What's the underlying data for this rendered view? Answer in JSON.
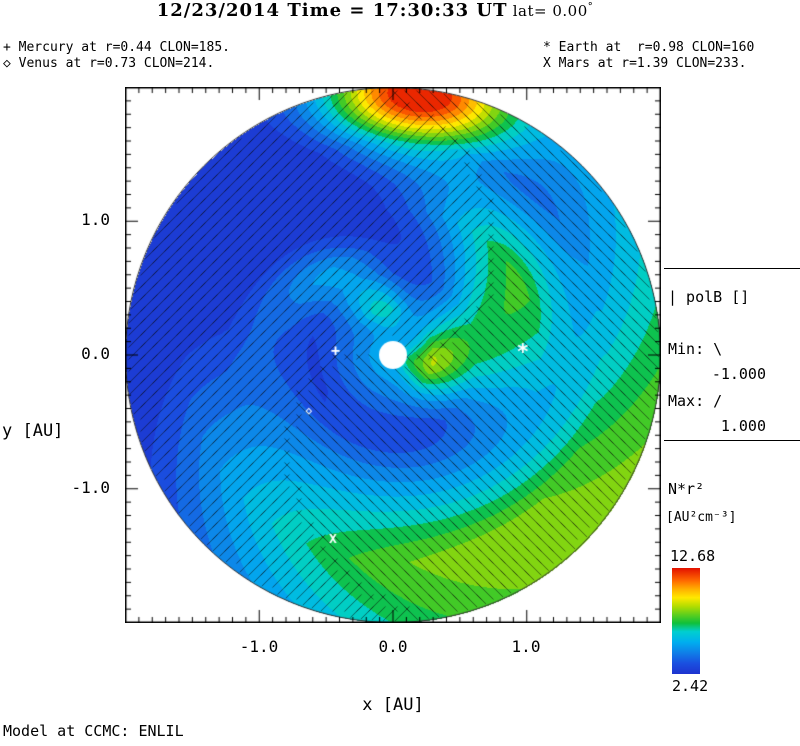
{
  "title": {
    "main": "12/23/2014 Time = 17:30:33 UT",
    "lat": " lat= 0.00",
    "degree": "°"
  },
  "annotations": {
    "mercury": "+ Mercury at r=0.44 CLON=185.",
    "venus": "◇ Venus at r=0.73 CLON=214.",
    "earth": "* Earth at  r=0.98 CLON=160",
    "mars": "X Mars at r=1.39 CLON=233."
  },
  "axes": {
    "x_label": "x [AU]",
    "y_label": "y [AU]",
    "x_ticks": {
      "m1": "-1.0",
      "z": "0.0",
      "p1": "1.0"
    },
    "y_ticks": {
      "p1": "1.0",
      "z": "0.0",
      "m1": "-1.0"
    }
  },
  "polarity_legend": {
    "title": "| polB []",
    "min_line": "Min: \\",
    "min_value": "-1.000",
    "max_line": "Max: /",
    "max_value": "1.000"
  },
  "colorbar": {
    "quantity": "N*r²",
    "units": "[AU²cm⁻³]",
    "max": "12.68",
    "min": "2.42"
  },
  "footer": {
    "model": "Model at CCMC: ENLIL"
  },
  "chart_data": {
    "type": "heatmap",
    "projection": "polar-disk-ecliptic-cut",
    "title": "12/23/2014 Time = 17:30:33 UT lat= 0.00°",
    "xlabel": "x [AU]",
    "ylabel": "y [AU]",
    "xlim": [
      -2.0,
      2.0
    ],
    "ylim": [
      -2.0,
      2.0
    ],
    "x_ticks": [
      -1.0,
      0.0,
      1.0
    ],
    "y_ticks": [
      -1.0,
      0.0,
      1.0
    ],
    "quantity": "N*r² [AU²cm⁻³]",
    "scale_min": 2.42,
    "scale_max": 12.68,
    "contour_bands": 16,
    "polarity": {
      "name": "polB []",
      "min": -1.0,
      "max": 1.0,
      "neg_hatch": "\\",
      "pos_hatch": "/"
    },
    "inner_boundary_au": 0.1,
    "outer_boundary_au": 2.0,
    "planets": [
      {
        "name": "Mercury",
        "glyph": "+",
        "r": 0.44,
        "clon": 185,
        "plot_x": -0.43,
        "plot_y": 0.02,
        "size": 15
      },
      {
        "name": "Venus",
        "glyph": "◇",
        "r": 0.73,
        "clon": 214,
        "plot_x": -0.63,
        "plot_y": -0.42,
        "size": 11
      },
      {
        "name": "Earth",
        "glyph": "*",
        "r": 0.98,
        "clon": 160,
        "plot_x": 0.97,
        "plot_y": 0.04,
        "size": 21
      },
      {
        "name": "Mars",
        "glyph": "X",
        "r": 1.39,
        "clon": 233,
        "plot_x": -0.45,
        "plot_y": -1.38,
        "size": 13
      }
    ],
    "colormap": [
      {
        "t": 0.0,
        "c": "#1d33cf"
      },
      {
        "t": 0.1,
        "c": "#1a4fe0"
      },
      {
        "t": 0.2,
        "c": "#0f7fe8"
      },
      {
        "t": 0.3,
        "c": "#00aeef"
      },
      {
        "t": 0.4,
        "c": "#00cfd0"
      },
      {
        "t": 0.48,
        "c": "#10c03a"
      },
      {
        "t": 0.56,
        "c": "#5ecf1d"
      },
      {
        "t": 0.64,
        "c": "#b4dd00"
      },
      {
        "t": 0.72,
        "c": "#ffe800"
      },
      {
        "t": 0.8,
        "c": "#ffb000"
      },
      {
        "t": 0.88,
        "c": "#ff6a00"
      },
      {
        "t": 1.0,
        "c": "#e31000"
      }
    ],
    "field_model": {
      "base": 2.7,
      "spiral_k_deg_per_au": 55,
      "components": [
        {
          "kind": "spiral_gauss",
          "center": -150,
          "width": 90,
          "amp": 5.8,
          "r_on": 0.55,
          "r_ramp": 1.0
        },
        {
          "kind": "spiral_gauss",
          "center": -25,
          "width": 45,
          "amp": 4.6,
          "r_on": 0.0,
          "r_ramp": 0.3,
          "r_off": 1.1,
          "r_fade": 0.5
        },
        {
          "kind": "spiral_gauss",
          "center": 85,
          "width": 30,
          "amp": 2.6,
          "r_on": 0.15,
          "r_ramp": 0.2,
          "r_off": 0.8,
          "r_fade": 0.45
        },
        {
          "kind": "blob",
          "theta": 85,
          "sig_theta": 20,
          "r": 1.95,
          "sig_r": 0.38,
          "amp": 9.8
        },
        {
          "kind": "spiral_gauss",
          "center": 60,
          "width": 55,
          "amp": -1.15,
          "r_on": 0.4,
          "r_ramp": 0.9
        },
        {
          "kind": "radial_glow",
          "amp": 2.6,
          "r0": 0.12,
          "fade": 0.5
        }
      ]
    },
    "hatch": {
      "spacing": 12,
      "seg_half": 8.5,
      "boundary_offset_deg": 15,
      "color": "rgba(10,10,10,0.6)"
    }
  }
}
